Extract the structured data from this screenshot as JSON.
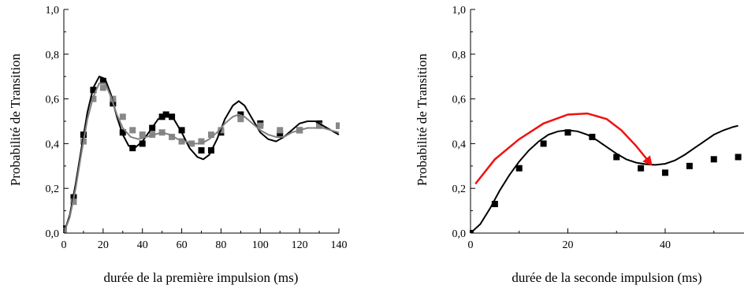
{
  "chart_data": [
    {
      "type": "scatter",
      "title": "",
      "xlabel": "durée de la première impulsion (ms)",
      "ylabel": "Probabilité de Transition",
      "xlim": [
        0,
        140
      ],
      "ylim": [
        0,
        1.0
      ],
      "xticks": [
        "0",
        "20",
        "40",
        "60",
        "80",
        "100",
        "120",
        "140"
      ],
      "yticks": [
        "0,0",
        "0,2",
        "0,4",
        "0,6",
        "0,8",
        "1,0"
      ],
      "series": [
        {
          "kind": "points",
          "color": "#000000",
          "points": [
            [
              0,
              0.02
            ],
            [
              5,
              0.16
            ],
            [
              10,
              0.44
            ],
            [
              15,
              0.64
            ],
            [
              20,
              0.68
            ],
            [
              25,
              0.58
            ],
            [
              30,
              0.45
            ],
            [
              35,
              0.38
            ],
            [
              40,
              0.4
            ],
            [
              45,
              0.47
            ],
            [
              50,
              0.52
            ],
            [
              52,
              0.53
            ],
            [
              55,
              0.52
            ],
            [
              60,
              0.46
            ],
            [
              70,
              0.37
            ],
            [
              75,
              0.37
            ],
            [
              80,
              0.45
            ],
            [
              90,
              0.53
            ],
            [
              100,
              0.49
            ],
            [
              110,
              0.44
            ],
            [
              120,
              0.46
            ],
            [
              130,
              0.49
            ],
            [
              140,
              0.48
            ]
          ]
        },
        {
          "kind": "points",
          "color": "#888888",
          "points": [
            [
              0,
              0.01
            ],
            [
              5,
              0.14
            ],
            [
              10,
              0.41
            ],
            [
              15,
              0.6
            ],
            [
              20,
              0.65
            ],
            [
              25,
              0.6
            ],
            [
              30,
              0.52
            ],
            [
              35,
              0.46
            ],
            [
              40,
              0.44
            ],
            [
              45,
              0.44
            ],
            [
              50,
              0.45
            ],
            [
              55,
              0.43
            ],
            [
              60,
              0.41
            ],
            [
              65,
              0.4
            ],
            [
              70,
              0.41
            ],
            [
              75,
              0.44
            ],
            [
              80,
              0.46
            ],
            [
              90,
              0.51
            ],
            [
              100,
              0.48
            ],
            [
              110,
              0.46
            ],
            [
              120,
              0.46
            ],
            [
              130,
              0.48
            ],
            [
              140,
              0.48
            ]
          ]
        },
        {
          "kind": "line",
          "color": "#000000",
          "points": [
            [
              0,
              0
            ],
            [
              3,
              0.08
            ],
            [
              6,
              0.22
            ],
            [
              9,
              0.38
            ],
            [
              12,
              0.54
            ],
            [
              15,
              0.65
            ],
            [
              18,
              0.7
            ],
            [
              21,
              0.69
            ],
            [
              24,
              0.62
            ],
            [
              27,
              0.52
            ],
            [
              30,
              0.44
            ],
            [
              33,
              0.39
            ],
            [
              36,
              0.38
            ],
            [
              40,
              0.41
            ],
            [
              44,
              0.46
            ],
            [
              48,
              0.51
            ],
            [
              52,
              0.53
            ],
            [
              56,
              0.51
            ],
            [
              60,
              0.45
            ],
            [
              64,
              0.38
            ],
            [
              68,
              0.34
            ],
            [
              71,
              0.33
            ],
            [
              74,
              0.35
            ],
            [
              78,
              0.42
            ],
            [
              82,
              0.51
            ],
            [
              86,
              0.57
            ],
            [
              89,
              0.59
            ],
            [
              92,
              0.57
            ],
            [
              96,
              0.51
            ],
            [
              100,
              0.45
            ],
            [
              104,
              0.42
            ],
            [
              108,
              0.41
            ],
            [
              112,
              0.43
            ],
            [
              116,
              0.46
            ],
            [
              120,
              0.49
            ],
            [
              124,
              0.5
            ],
            [
              128,
              0.5
            ],
            [
              132,
              0.48
            ],
            [
              136,
              0.46
            ],
            [
              140,
              0.44
            ]
          ]
        },
        {
          "kind": "line",
          "color": "#808080",
          "points": [
            [
              0,
              0
            ],
            [
              3,
              0.07
            ],
            [
              6,
              0.2
            ],
            [
              9,
              0.36
            ],
            [
              12,
              0.51
            ],
            [
              15,
              0.61
            ],
            [
              18,
              0.67
            ],
            [
              21,
              0.67
            ],
            [
              24,
              0.61
            ],
            [
              27,
              0.53
            ],
            [
              30,
              0.47
            ],
            [
              34,
              0.43
            ],
            [
              38,
              0.42
            ],
            [
              42,
              0.43
            ],
            [
              46,
              0.44
            ],
            [
              50,
              0.45
            ],
            [
              54,
              0.44
            ],
            [
              58,
              0.42
            ],
            [
              62,
              0.41
            ],
            [
              66,
              0.4
            ],
            [
              70,
              0.4
            ],
            [
              74,
              0.42
            ],
            [
              78,
              0.45
            ],
            [
              82,
              0.49
            ],
            [
              86,
              0.52
            ],
            [
              89,
              0.53
            ],
            [
              92,
              0.52
            ],
            [
              96,
              0.49
            ],
            [
              100,
              0.46
            ],
            [
              104,
              0.44
            ],
            [
              108,
              0.43
            ],
            [
              112,
              0.43
            ],
            [
              116,
              0.45
            ],
            [
              120,
              0.46
            ],
            [
              124,
              0.47
            ],
            [
              128,
              0.47
            ],
            [
              132,
              0.47
            ],
            [
              136,
              0.46
            ],
            [
              140,
              0.45
            ]
          ]
        }
      ]
    },
    {
      "type": "scatter",
      "title": "",
      "xlabel": "durée de la seconde impulsion (ms)",
      "ylabel": "Probabilité de Transition",
      "xlim": [
        0,
        55
      ],
      "ylim": [
        0,
        1.0
      ],
      "xticks": [
        "0",
        "20",
        "40"
      ],
      "yticks": [
        "0,0",
        "0,2",
        "0,4",
        "0,6",
        "0,8",
        "1,0"
      ],
      "series": [
        {
          "kind": "points",
          "color": "#000000",
          "points": [
            [
              0,
              0.0
            ],
            [
              5,
              0.13
            ],
            [
              10,
              0.29
            ],
            [
              15,
              0.4
            ],
            [
              20,
              0.45
            ],
            [
              25,
              0.43
            ],
            [
              30,
              0.34
            ],
            [
              35,
              0.29
            ],
            [
              40,
              0.27
            ],
            [
              45,
              0.3
            ],
            [
              50,
              0.33
            ],
            [
              55,
              0.34
            ]
          ]
        },
        {
          "kind": "line",
          "color": "#000000",
          "points": [
            [
              0,
              0
            ],
            [
              2,
              0.04
            ],
            [
              4,
              0.11
            ],
            [
              6,
              0.19
            ],
            [
              8,
              0.26
            ],
            [
              10,
              0.32
            ],
            [
              12,
              0.37
            ],
            [
              14,
              0.41
            ],
            [
              16,
              0.44
            ],
            [
              18,
              0.455
            ],
            [
              20,
              0.46
            ],
            [
              22,
              0.455
            ],
            [
              24,
              0.44
            ],
            [
              26,
              0.415
            ],
            [
              28,
              0.385
            ],
            [
              30,
              0.355
            ],
            [
              32,
              0.33
            ],
            [
              34,
              0.315
            ],
            [
              36,
              0.308
            ],
            [
              38,
              0.305
            ],
            [
              40,
              0.31
            ],
            [
              42,
              0.325
            ],
            [
              44,
              0.35
            ],
            [
              46,
              0.38
            ],
            [
              48,
              0.41
            ],
            [
              50,
              0.44
            ],
            [
              52,
              0.46
            ],
            [
              54,
              0.475
            ],
            [
              55,
              0.48
            ]
          ]
        },
        {
          "kind": "arrow",
          "color": "#ee1111",
          "points": [
            [
              1,
              0.22
            ],
            [
              5,
              0.33
            ],
            [
              10,
              0.42
            ],
            [
              15,
              0.49
            ],
            [
              20,
              0.53
            ],
            [
              24,
              0.535
            ],
            [
              28,
              0.51
            ],
            [
              31,
              0.46
            ],
            [
              34,
              0.39
            ],
            [
              37,
              0.31
            ]
          ]
        }
      ]
    }
  ]
}
